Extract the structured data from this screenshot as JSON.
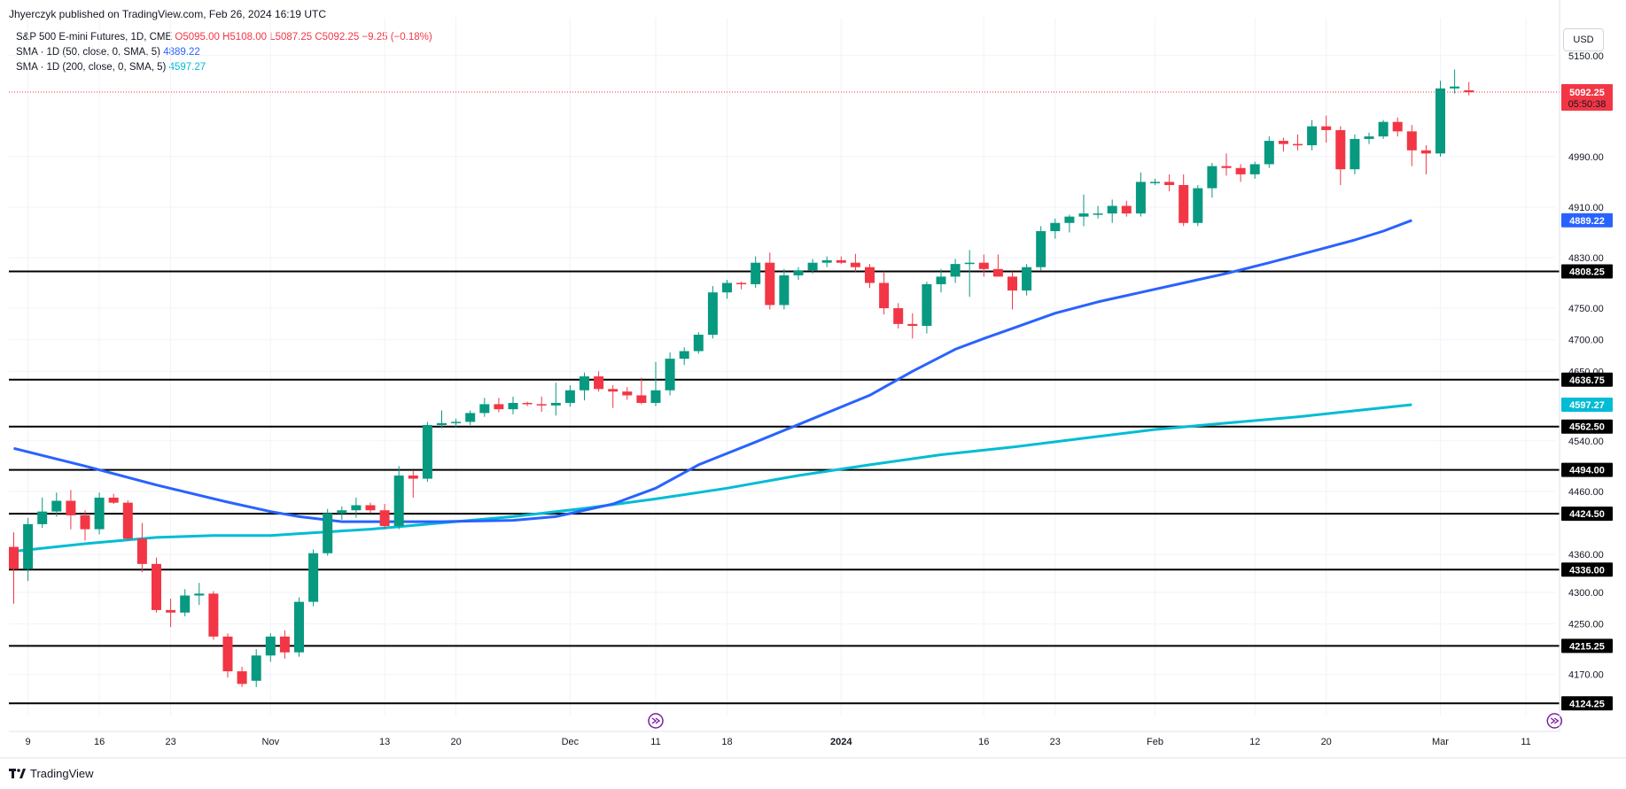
{
  "header": {
    "publish": "Jhyerczyk published on TradingView.com, Feb 26, 2024 16:19 UTC"
  },
  "legend": {
    "symbol": "S&P 500 E-mini Futures, 1D, CME",
    "open": "O5095.00",
    "high": "H5108.00",
    "low": "L5087.25",
    "close": "C5092.25",
    "change": "−9.25 (−0.18%)",
    "sma50_label": "SMA · 1D (50, close, 0, SMA, 5)",
    "sma50_value": "4889.22",
    "sma200_label": "SMA · 1D (200, close, 0, SMA, 5)",
    "sma200_value": "4597.27"
  },
  "currency": "USD",
  "footer": {
    "brand": "TradingView"
  },
  "colors": {
    "up": "#089981",
    "down": "#f23645",
    "sma50": "#2962ff",
    "sma200": "#00bcd4",
    "level": "#000000",
    "grid": "#f0f3fa"
  },
  "chart_data": {
    "type": "candlestick",
    "ylim": [
      4105,
      5210
    ],
    "y_ticks": [
      5150,
      4990,
      4910,
      4830,
      4750,
      4700,
      4650,
      4540,
      4460,
      4360,
      4300,
      4250,
      4170
    ],
    "x_tick_labels": [
      {
        "label": "9",
        "bar": 1
      },
      {
        "label": "16",
        "bar": 6
      },
      {
        "label": "23",
        "bar": 11
      },
      {
        "label": "Nov",
        "bar": 18
      },
      {
        "label": "13",
        "bar": 26
      },
      {
        "label": "20",
        "bar": 31
      },
      {
        "label": "Dec",
        "bar": 39
      },
      {
        "label": "11",
        "bar": 45
      },
      {
        "label": "18",
        "bar": 50
      },
      {
        "label": "2024",
        "bar": 58,
        "bold": true
      },
      {
        "label": "16",
        "bar": 68
      },
      {
        "label": "23",
        "bar": 73
      },
      {
        "label": "Feb",
        "bar": 80
      },
      {
        "label": "12",
        "bar": 87
      },
      {
        "label": "20",
        "bar": 92
      },
      {
        "label": "Mar",
        "bar": 100
      },
      {
        "label": "11",
        "bar": 106
      }
    ],
    "candles": [
      [
        4372,
        4395,
        4282,
        4337
      ],
      [
        4337,
        4418,
        4318,
        4408
      ],
      [
        4408,
        4450,
        4402,
        4428
      ],
      [
        4428,
        4458,
        4420,
        4445
      ],
      [
        4445,
        4462,
        4400,
        4422
      ],
      [
        4422,
        4430,
        4382,
        4400
      ],
      [
        4400,
        4458,
        4392,
        4450
      ],
      [
        4450,
        4456,
        4440,
        4442
      ],
      [
        4442,
        4446,
        4382,
        4385
      ],
      [
        4385,
        4410,
        4332,
        4345
      ],
      [
        4345,
        4355,
        4268,
        4272
      ],
      [
        4272,
        4290,
        4245,
        4268
      ],
      [
        4268,
        4305,
        4262,
        4295
      ],
      [
        4295,
        4315,
        4280,
        4298
      ],
      [
        4298,
        4302,
        4225,
        4230
      ],
      [
        4230,
        4235,
        4165,
        4175
      ],
      [
        4175,
        4182,
        4150,
        4155
      ],
      [
        4160,
        4210,
        4150,
        4200
      ],
      [
        4200,
        4235,
        4190,
        4230
      ],
      [
        4230,
        4240,
        4195,
        4205
      ],
      [
        4205,
        4292,
        4198,
        4285
      ],
      [
        4285,
        4368,
        4278,
        4362
      ],
      [
        4362,
        4432,
        4358,
        4425
      ],
      [
        4425,
        4436,
        4415,
        4430
      ],
      [
        4430,
        4450,
        4418,
        4438
      ],
      [
        4438,
        4442,
        4425,
        4430
      ],
      [
        4430,
        4440,
        4400,
        4405
      ],
      [
        4405,
        4500,
        4400,
        4485
      ],
      [
        4485,
        4492,
        4450,
        4480
      ],
      [
        4480,
        4570,
        4475,
        4565
      ],
      [
        4565,
        4588,
        4560,
        4568
      ],
      [
        4568,
        4575,
        4562,
        4570
      ],
      [
        4570,
        4588,
        4565,
        4584
      ],
      [
        4584,
        4608,
        4578,
        4598
      ],
      [
        4598,
        4608,
        4585,
        4590
      ],
      [
        4590,
        4610,
        4582,
        4600
      ],
      [
        4600,
        4602,
        4595,
        4598
      ],
      [
        4598,
        4610,
        4586,
        4596
      ],
      [
        4596,
        4632,
        4580,
        4600
      ],
      [
        4600,
        4628,
        4594,
        4620
      ],
      [
        4620,
        4648,
        4604,
        4642
      ],
      [
        4642,
        4650,
        4618,
        4622
      ],
      [
        4622,
        4628,
        4592,
        4618
      ],
      [
        4618,
        4625,
        4605,
        4612
      ],
      [
        4612,
        4640,
        4598,
        4600
      ],
      [
        4600,
        4665,
        4595,
        4620
      ],
      [
        4620,
        4680,
        4612,
        4670
      ],
      [
        4670,
        4688,
        4660,
        4682
      ],
      [
        4682,
        4712,
        4678,
        4708
      ],
      [
        4708,
        4785,
        4702,
        4775
      ],
      [
        4775,
        4795,
        4765,
        4790
      ],
      [
        4790,
        4792,
        4780,
        4788
      ],
      [
        4788,
        4832,
        4782,
        4822
      ],
      [
        4822,
        4838,
        4748,
        4755
      ],
      [
        4755,
        4812,
        4748,
        4802
      ],
      [
        4802,
        4815,
        4795,
        4810
      ],
      [
        4810,
        4828,
        4805,
        4822
      ],
      [
        4822,
        4832,
        4815,
        4826
      ],
      [
        4826,
        4832,
        4820,
        4822
      ],
      [
        4822,
        4836,
        4808,
        4815
      ],
      [
        4815,
        4820,
        4782,
        4790
      ],
      [
        4790,
        4808,
        4740,
        4750
      ],
      [
        4750,
        4758,
        4718,
        4725
      ],
      [
        4725,
        4742,
        4702,
        4722
      ],
      [
        4722,
        4792,
        4710,
        4788
      ],
      [
        4788,
        4812,
        4775,
        4800
      ],
      [
        4800,
        4828,
        4790,
        4820
      ],
      [
        4820,
        4842,
        4768,
        4822
      ],
      [
        4822,
        4835,
        4800,
        4812
      ],
      [
        4812,
        4835,
        4800,
        4800
      ],
      [
        4800,
        4808,
        4748,
        4778
      ],
      [
        4778,
        4820,
        4770,
        4815
      ],
      [
        4815,
        4880,
        4810,
        4872
      ],
      [
        4872,
        4892,
        4860,
        4885
      ],
      [
        4885,
        4898,
        4870,
        4895
      ],
      [
        4895,
        4930,
        4880,
        4900
      ],
      [
        4900,
        4912,
        4892,
        4900
      ],
      [
        4900,
        4922,
        4885,
        4912
      ],
      [
        4912,
        4920,
        4895,
        4900
      ],
      [
        4900,
        4965,
        4895,
        4950
      ],
      [
        4950,
        4955,
        4945,
        4950
      ],
      [
        4950,
        4962,
        4935,
        4945
      ],
      [
        4945,
        4962,
        4880,
        4885
      ],
      [
        4885,
        4945,
        4880,
        4940
      ],
      [
        4940,
        4980,
        4925,
        4975
      ],
      [
        4975,
        4995,
        4960,
        4972
      ],
      [
        4972,
        4978,
        4950,
        4962
      ],
      [
        4962,
        4982,
        4955,
        4978
      ],
      [
        4978,
        5022,
        4972,
        5015
      ],
      [
        5015,
        5020,
        4998,
        5010
      ],
      [
        5010,
        5025,
        5000,
        5008
      ],
      [
        5008,
        5048,
        5000,
        5038
      ],
      [
        5038,
        5055,
        5012,
        5032
      ],
      [
        5032,
        5038,
        4945,
        4970
      ],
      [
        4970,
        5025,
        4962,
        5018
      ],
      [
        5018,
        5028,
        5010,
        5022
      ],
      [
        5022,
        5048,
        5018,
        5045
      ],
      [
        5045,
        5052,
        5022,
        5030
      ],
      [
        5030,
        5040,
        4975,
        5000
      ],
      [
        5000,
        5008,
        4962,
        4995
      ],
      [
        4995,
        5110,
        4990,
        5098
      ],
      [
        5098,
        5128,
        5090,
        5101
      ],
      [
        5095,
        5108,
        5087,
        5092
      ]
    ],
    "sma50": [
      [
        0,
        4528
      ],
      [
        5,
        4500
      ],
      [
        10,
        4470
      ],
      [
        15,
        4443
      ],
      [
        18,
        4428
      ],
      [
        20,
        4420
      ],
      [
        23,
        4412
      ],
      [
        26,
        4412
      ],
      [
        30,
        4412
      ],
      [
        35,
        4414
      ],
      [
        38,
        4420
      ],
      [
        42,
        4440
      ],
      [
        45,
        4465
      ],
      [
        48,
        4502
      ],
      [
        52,
        4538
      ],
      [
        56,
        4575
      ],
      [
        60,
        4612
      ],
      [
        63,
        4650
      ],
      [
        66,
        4685
      ],
      [
        68,
        4702
      ],
      [
        70,
        4718
      ],
      [
        73,
        4742
      ],
      [
        76,
        4760
      ],
      [
        79,
        4775
      ],
      [
        82,
        4790
      ],
      [
        85,
        4805
      ],
      [
        88,
        4822
      ],
      [
        91,
        4840
      ],
      [
        94,
        4858
      ],
      [
        96,
        4872
      ],
      [
        98,
        4889.22
      ]
    ],
    "sma200": [
      [
        0,
        4365
      ],
      [
        5,
        4377
      ],
      [
        10,
        4387
      ],
      [
        14,
        4390
      ],
      [
        18,
        4390
      ],
      [
        20,
        4393
      ],
      [
        25,
        4400
      ],
      [
        30,
        4410
      ],
      [
        35,
        4420
      ],
      [
        40,
        4433
      ],
      [
        45,
        4448
      ],
      [
        50,
        4465
      ],
      [
        55,
        4485
      ],
      [
        60,
        4502
      ],
      [
        65,
        4518
      ],
      [
        70,
        4530
      ],
      [
        75,
        4544
      ],
      [
        80,
        4558
      ],
      [
        85,
        4568
      ],
      [
        90,
        4578
      ],
      [
        95,
        4590
      ],
      [
        98,
        4597.27
      ]
    ],
    "levels": [
      {
        "value": 4808.25,
        "label": "4808.25"
      },
      {
        "value": 4636.75,
        "label": "4636.75"
      },
      {
        "value": 4562.5,
        "label": "4562.50"
      },
      {
        "value": 4494.0,
        "label": "4494.00"
      },
      {
        "value": 4424.5,
        "label": "4424.50"
      },
      {
        "value": 4336.0,
        "label": "4336.00"
      },
      {
        "value": 4215.25,
        "label": "4215.25"
      },
      {
        "value": 4124.25,
        "label": "4124.25"
      }
    ],
    "price_tag": {
      "value": 5092.25,
      "label": "5092.25",
      "countdown": "05:50:38"
    },
    "sma50_tag": {
      "value": 4889.22,
      "label": "4889.22"
    },
    "sma200_tag": {
      "value": 4597.27,
      "label": "4597.27"
    },
    "event_markers": [
      {
        "bar": 45
      },
      {
        "bar": 108
      }
    ]
  }
}
